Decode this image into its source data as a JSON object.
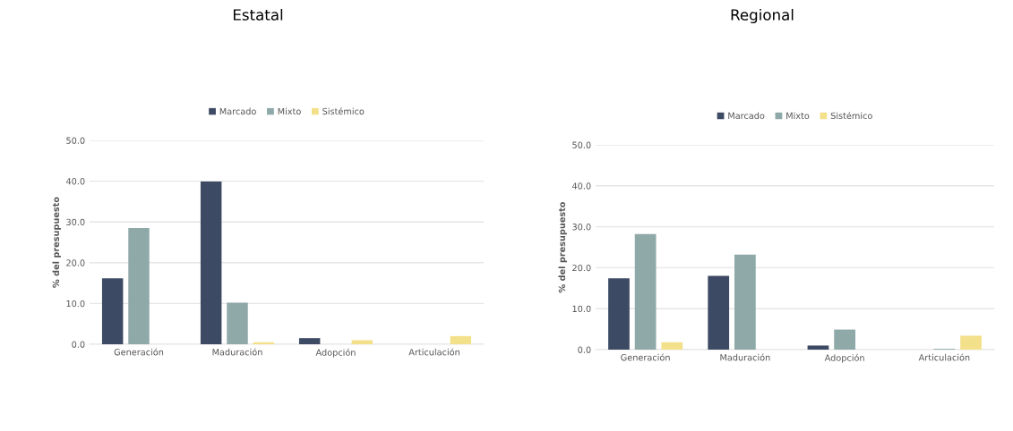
{
  "chart_data": [
    {
      "type": "bar",
      "title": "Estatal",
      "ylabel": "% del presupuesto",
      "categories": [
        "Generación",
        "Maduración",
        "Adopción",
        "Articulación"
      ],
      "series": [
        {
          "name": "Marcado",
          "color": "#3d4a63",
          "values": [
            16.2,
            39.9,
            1.5,
            null
          ]
        },
        {
          "name": "Mixto",
          "color": "#8fa8a8",
          "values": [
            28.5,
            10.2,
            null,
            null
          ]
        },
        {
          "name": "Sistémico",
          "color": "#f3e08a",
          "values": [
            null,
            0.5,
            1.0,
            2.0
          ]
        }
      ],
      "ylim": [
        0,
        50
      ],
      "yticks": [
        {
          "value": 0,
          "label": "0.0"
        },
        {
          "value": 10,
          "label": "10.0"
        },
        {
          "value": 20,
          "label": "20.0"
        },
        {
          "value": 30,
          "label": "30.0"
        },
        {
          "value": 40,
          "label": "40.0"
        },
        {
          "value": 50,
          "label": "50.0"
        }
      ],
      "grid": "y",
      "legend": "top"
    },
    {
      "type": "bar",
      "title": "Regional",
      "ylabel": "% del presupuesto",
      "categories": [
        "Generación",
        "Maduración",
        "Adopción",
        "Articulación"
      ],
      "series": [
        {
          "name": "Marcado",
          "color": "#3d4a63",
          "values": [
            17.4,
            18.0,
            1.0,
            null
          ]
        },
        {
          "name": "Mixto",
          "color": "#8fa8a8",
          "values": [
            28.2,
            23.2,
            4.9,
            0.2
          ]
        },
        {
          "name": "Sistémico",
          "color": "#f3e08a",
          "values": [
            1.8,
            null,
            null,
            3.4
          ]
        }
      ],
      "ylim": [
        0,
        50
      ],
      "yticks": [
        {
          "value": 0,
          "label": "0.0"
        },
        {
          "value": 10,
          "label": "10.0"
        },
        {
          "value": 20,
          "label": "20.0"
        },
        {
          "value": 30,
          "label": "30.0"
        },
        {
          "value": 40,
          "label": "40.0"
        },
        {
          "value": 50,
          "label": "50.0"
        }
      ],
      "grid": "y",
      "legend": "top"
    }
  ]
}
